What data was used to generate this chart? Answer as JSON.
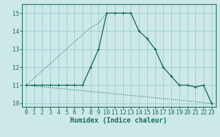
{
  "xlabel": "Humidex (Indice chaleur)",
  "x_values": [
    0,
    1,
    2,
    3,
    4,
    5,
    6,
    7,
    8,
    9,
    10,
    11,
    12,
    13,
    14,
    15,
    16,
    17,
    18,
    19,
    20,
    21,
    22,
    23
  ],
  "line1_y": [
    11,
    11,
    11,
    11,
    11,
    11,
    11,
    11,
    12,
    13,
    15,
    15,
    15,
    15,
    14,
    13.6,
    13,
    12,
    11.5,
    11,
    11,
    10.9,
    11,
    10
  ],
  "lower_dotted_y": [
    11,
    10.96,
    10.91,
    10.87,
    10.83,
    10.78,
    10.74,
    10.7,
    10.65,
    10.61,
    10.57,
    10.52,
    10.48,
    10.43,
    10.39,
    10.35,
    10.3,
    10.26,
    10.22,
    10.17,
    10.13,
    10.09,
    10.04,
    10.0
  ],
  "diag_dotted_x": [
    0,
    1,
    2,
    3,
    4,
    5,
    6,
    7,
    8,
    9,
    10
  ],
  "diag_dotted_y": [
    11,
    11.4,
    11.8,
    12.2,
    12.6,
    13.0,
    13.4,
    13.8,
    14.2,
    14.45,
    15.0
  ],
  "line_color": "#1a6b5a",
  "bg_color": "#cce8e8",
  "grid_color": "#99cccc",
  "ylim": [
    9.8,
    15.5
  ],
  "xlim": [
    -0.5,
    23.5
  ],
  "yticks": [
    10,
    11,
    12,
    13,
    14,
    15
  ],
  "xticks": [
    0,
    1,
    2,
    3,
    4,
    5,
    6,
    7,
    8,
    9,
    10,
    11,
    12,
    13,
    14,
    15,
    16,
    17,
    18,
    19,
    20,
    21,
    22,
    23
  ],
  "tick_fontsize": 6,
  "xlabel_fontsize": 7
}
